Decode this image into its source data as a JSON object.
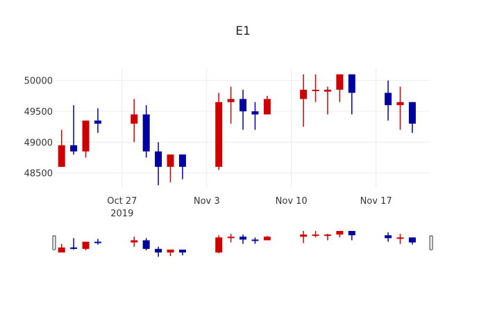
{
  "chart_data": {
    "type": "candlestick",
    "title": "E1",
    "xlabel": "",
    "ylabel": "",
    "ylim": [
      48260,
      50200
    ],
    "y_ticks": [
      48500,
      49000,
      49500,
      50000
    ],
    "y_tick_labels": [
      "48500",
      "49000",
      "49500",
      "50000"
    ],
    "x_range": [
      "2019-10-21T12:00",
      "2019-11-21T12:00"
    ],
    "x_ticks": [
      {
        "date": "2019-10-27",
        "label": "Oct 27",
        "sublabel": "2019"
      },
      {
        "date": "2019-11-03",
        "label": "Nov 3",
        "sublabel": ""
      },
      {
        "date": "2019-11-10",
        "label": "Nov 10",
        "sublabel": ""
      },
      {
        "date": "2019-11-17",
        "label": "Nov 17",
        "sublabel": ""
      }
    ],
    "grid": true,
    "legend": "none",
    "rangeslider": true,
    "increasing_color": "#00009f",
    "decreasing_color": "#cc0000",
    "candles": [
      {
        "date": "2019-10-22",
        "open": 48950,
        "high": 49200,
        "low": 48600,
        "close": 48600
      },
      {
        "date": "2019-10-23",
        "open": 48850,
        "high": 49600,
        "low": 48800,
        "close": 48950
      },
      {
        "date": "2019-10-24",
        "open": 49350,
        "high": 49350,
        "low": 48750,
        "close": 48850
      },
      {
        "date": "2019-10-25",
        "open": 49300,
        "high": 49550,
        "low": 49150,
        "close": 49350
      },
      {
        "date": "2019-10-28",
        "open": 49450,
        "high": 49700,
        "low": 49000,
        "close": 49300
      },
      {
        "date": "2019-10-29",
        "open": 48850,
        "high": 49600,
        "low": 48750,
        "close": 49450
      },
      {
        "date": "2019-10-30",
        "open": 48600,
        "high": 49000,
        "low": 48300,
        "close": 48850
      },
      {
        "date": "2019-10-31",
        "open": 48800,
        "high": 48800,
        "low": 48350,
        "close": 48600
      },
      {
        "date": "2019-11-01",
        "open": 48600,
        "high": 48800,
        "low": 48400,
        "close": 48800
      },
      {
        "date": "2019-11-04",
        "open": 49650,
        "high": 49800,
        "low": 48550,
        "close": 48600
      },
      {
        "date": "2019-11-05",
        "open": 49700,
        "high": 49900,
        "low": 49300,
        "close": 49650
      },
      {
        "date": "2019-11-06",
        "open": 49500,
        "high": 49850,
        "low": 49200,
        "close": 49700
      },
      {
        "date": "2019-11-07",
        "open": 49450,
        "high": 49650,
        "low": 49200,
        "close": 49500
      },
      {
        "date": "2019-11-08",
        "open": 49700,
        "high": 49750,
        "low": 49450,
        "close": 49450
      },
      {
        "date": "2019-11-11",
        "open": 49850,
        "high": 50100,
        "low": 49250,
        "close": 49700
      },
      {
        "date": "2019-11-12",
        "open": 49850,
        "high": 50100,
        "low": 49650,
        "close": 49830
      },
      {
        "date": "2019-11-13",
        "open": 49850,
        "high": 49900,
        "low": 49450,
        "close": 49820
      },
      {
        "date": "2019-11-14",
        "open": 50100,
        "high": 50100,
        "low": 49650,
        "close": 49850
      },
      {
        "date": "2019-11-15",
        "open": 49800,
        "high": 50100,
        "low": 49450,
        "close": 50100
      },
      {
        "date": "2019-11-18",
        "open": 49600,
        "high": 50000,
        "low": 49350,
        "close": 49800
      },
      {
        "date": "2019-11-19",
        "open": 49650,
        "high": 49900,
        "low": 49200,
        "close": 49600
      },
      {
        "date": "2019-11-20",
        "open": 49300,
        "high": 49650,
        "low": 49150,
        "close": 49650
      }
    ]
  }
}
